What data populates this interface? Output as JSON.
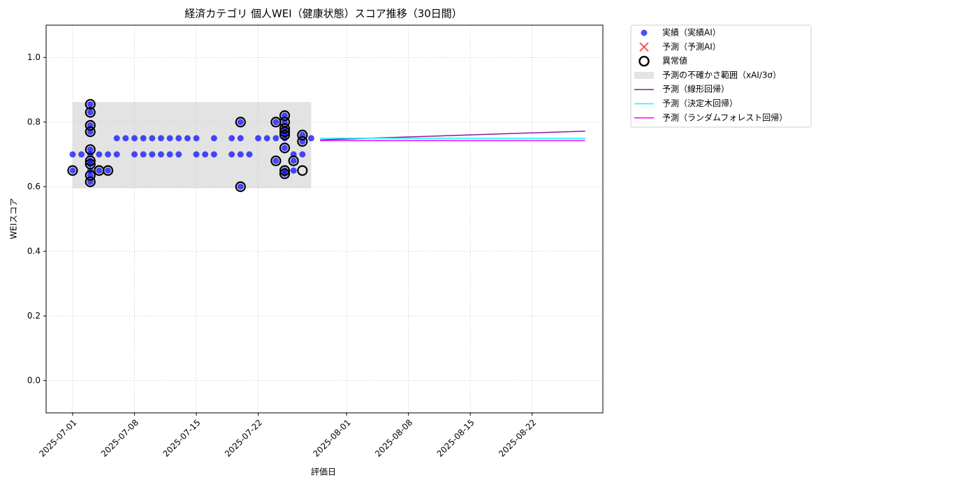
{
  "chart_data": {
    "type": "scatter",
    "title": "経済カテゴリ 個人WEI（健康状態）スコア推移（30日間）",
    "x_label": "評価日",
    "y_label": "WEIスコア",
    "xlim": [
      "2025-06-28",
      "2025-08-30"
    ],
    "xticks": [
      "2025-07-01",
      "2025-07-08",
      "2025-07-15",
      "2025-07-22",
      "2025-08-01",
      "2025-08-08",
      "2025-08-15",
      "2025-08-22"
    ],
    "ylim": [
      -0.1,
      1.1
    ],
    "yticks": [
      {
        "value": 0,
        "label": "0.0"
      },
      0.2,
      0.4,
      0.6,
      0.8,
      {
        "value": 1,
        "label": "1.0"
      }
    ],
    "grid": true,
    "legend": "outside upper right",
    "series": [
      {
        "name": "実績（実績AI）",
        "kind": "dot",
        "color": "#0000ff",
        "x": [
          "2025-07-01",
          "2025-07-02",
          "2025-07-03",
          "2025-07-04",
          "2025-07-05",
          "2025-07-06",
          "2025-07-08",
          "2025-07-09",
          "2025-07-10",
          "2025-07-11",
          "2025-07-12",
          "2025-07-13",
          "2025-07-15",
          "2025-07-16",
          "2025-07-17",
          "2025-07-19",
          "2025-07-20",
          "2025-07-21",
          "2025-07-26",
          "2025-07-27",
          "2025-07-06",
          "2025-07-07",
          "2025-07-08",
          "2025-07-09",
          "2025-07-10",
          "2025-07-11",
          "2025-07-12",
          "2025-07-13",
          "2025-07-14",
          "2025-07-15",
          "2025-07-17",
          "2025-07-19",
          "2025-07-20",
          "2025-07-22",
          "2025-07-23",
          "2025-07-24",
          "2025-07-25",
          "2025-07-28",
          "2025-07-01",
          "2025-07-03",
          "2025-07-04",
          "2025-07-05",
          "2025-07-25",
          "2025-07-26",
          "2025-07-03",
          "2025-07-03",
          "2025-07-03",
          "2025-07-03",
          "2025-07-03",
          "2025-07-03",
          "2025-07-03",
          "2025-07-03",
          "2025-07-03",
          "2025-07-20",
          "2025-07-20",
          "2025-07-24",
          "2025-07-24",
          "2025-07-25",
          "2025-07-25",
          "2025-07-25",
          "2025-07-25",
          "2025-07-25",
          "2025-07-25",
          "2025-07-25",
          "2025-07-26",
          "2025-07-27",
          "2025-07-27"
        ],
        "values": [
          0.7,
          0.7,
          0.7,
          0.7,
          0.7,
          0.7,
          0.7,
          0.7,
          0.7,
          0.7,
          0.7,
          0.7,
          0.7,
          0.7,
          0.7,
          0.7,
          0.7,
          0.7,
          0.7,
          0.7,
          0.75,
          0.75,
          0.75,
          0.75,
          0.75,
          0.75,
          0.75,
          0.75,
          0.75,
          0.75,
          0.75,
          0.75,
          0.75,
          0.75,
          0.75,
          0.75,
          0.75,
          0.75,
          0.65,
          0.65,
          0.65,
          0.65,
          0.65,
          0.65,
          0.855,
          0.83,
          0.79,
          0.77,
          0.715,
          0.68,
          0.67,
          0.635,
          0.615,
          0.8,
          0.6,
          0.8,
          0.68,
          0.82,
          0.8,
          0.78,
          0.77,
          0.76,
          0.72,
          0.64,
          0.68,
          0.76,
          0.74
        ]
      },
      {
        "name": "予測（予測AI）",
        "kind": "cross",
        "color": "#ff0000",
        "x": [],
        "values": []
      },
      {
        "name": "異常値",
        "kind": "ring",
        "color": "#000000",
        "x": [
          "2025-07-01",
          "2025-07-03",
          "2025-07-03",
          "2025-07-03",
          "2025-07-03",
          "2025-07-03",
          "2025-07-03",
          "2025-07-03",
          "2025-07-03",
          "2025-07-03",
          "2025-07-04",
          "2025-07-05",
          "2025-07-20",
          "2025-07-20",
          "2025-07-24",
          "2025-07-24",
          "2025-07-25",
          "2025-07-25",
          "2025-07-25",
          "2025-07-25",
          "2025-07-25",
          "2025-07-25",
          "2025-07-25",
          "2025-07-25",
          "2025-07-26",
          "2025-07-27",
          "2025-07-27",
          "2025-07-27"
        ],
        "values": [
          0.65,
          0.855,
          0.83,
          0.79,
          0.77,
          0.715,
          0.68,
          0.67,
          0.635,
          0.615,
          0.65,
          0.65,
          0.8,
          0.6,
          0.8,
          0.68,
          0.82,
          0.8,
          0.78,
          0.77,
          0.76,
          0.72,
          0.65,
          0.64,
          0.68,
          0.76,
          0.65,
          0.74
        ]
      },
      {
        "name": "予測の不確かさ範囲（xAI/3σ）",
        "kind": "band",
        "color": "#cccccc",
        "x": [
          "2025-07-01",
          "2025-07-28"
        ],
        "lower": [
          0.595,
          0.595
        ],
        "upper": [
          0.862,
          0.862
        ]
      },
      {
        "name": "予測（線形回帰）",
        "kind": "line",
        "color": "#8b1a9b",
        "x": [
          "2025-07-29",
          "2025-08-28"
        ],
        "values": [
          0.745,
          0.772
        ]
      },
      {
        "name": "予測（決定木回帰）",
        "kind": "line",
        "color": "#00ffff",
        "x": [
          "2025-07-29",
          "2025-08-28"
        ],
        "values": [
          0.75,
          0.75
        ]
      },
      {
        "name": "予測（ランダムフォレスト回帰）",
        "kind": "line",
        "color": "#ff00ff",
        "x": [
          "2025-07-29",
          "2025-08-28"
        ],
        "values": [
          0.743,
          0.743
        ]
      }
    ]
  }
}
